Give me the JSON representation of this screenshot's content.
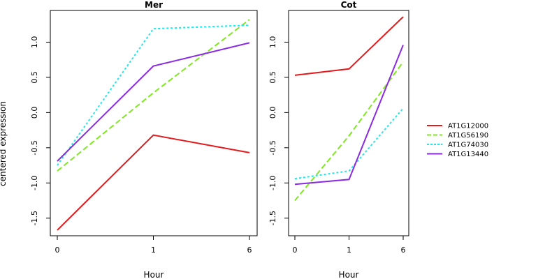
{
  "chart_data": {
    "type": "line",
    "ylabel": "centered expression",
    "legend_position": "right",
    "legend": [
      {
        "name": "AT1G12000",
        "color": "#e31a1c",
        "dash": "solid"
      },
      {
        "name": "AT1G56190",
        "color": "#7fe81f",
        "dash": "dashed"
      },
      {
        "name": "AT1G74030",
        "color": "#22e6e6",
        "dash": "dotted"
      },
      {
        "name": "AT1G13440",
        "color": "#8a2be2",
        "dash": "solid"
      }
    ],
    "panels": [
      {
        "title": "Mer",
        "xlabel": "Hour",
        "categories": [
          "0",
          "1",
          "6"
        ],
        "ylim": [
          -1.75,
          1.45
        ],
        "yticks": [
          "-1.5",
          "-1.0",
          "-0.5",
          "0.0",
          "0.5",
          "1.0"
        ],
        "series": [
          {
            "name": "AT1G12000",
            "values": [
              -1.67,
              -0.32,
              -0.57
            ]
          },
          {
            "name": "AT1G56190",
            "values": [
              -0.83,
              0.28,
              1.32
            ]
          },
          {
            "name": "AT1G74030",
            "values": [
              -0.75,
              1.19,
              1.24
            ]
          },
          {
            "name": "AT1G13440",
            "values": [
              -0.69,
              0.66,
              0.99
            ]
          }
        ]
      },
      {
        "title": "Cot",
        "xlabel": "Hour",
        "categories": [
          "0",
          "1",
          "6"
        ],
        "ylim": [
          -1.75,
          1.45
        ],
        "yticks": [
          "-1.5",
          "-1.0",
          "-0.5",
          "0.0",
          "0.5",
          "1.0"
        ],
        "series": [
          {
            "name": "AT1G12000",
            "values": [
              0.53,
              0.62,
              1.36
            ]
          },
          {
            "name": "AT1G56190",
            "values": [
              -1.25,
              -0.33,
              0.72
            ]
          },
          {
            "name": "AT1G74030",
            "values": [
              -0.94,
              -0.83,
              0.06
            ]
          },
          {
            "name": "AT1G13440",
            "values": [
              -1.02,
              -0.95,
              0.96
            ]
          }
        ]
      }
    ]
  }
}
